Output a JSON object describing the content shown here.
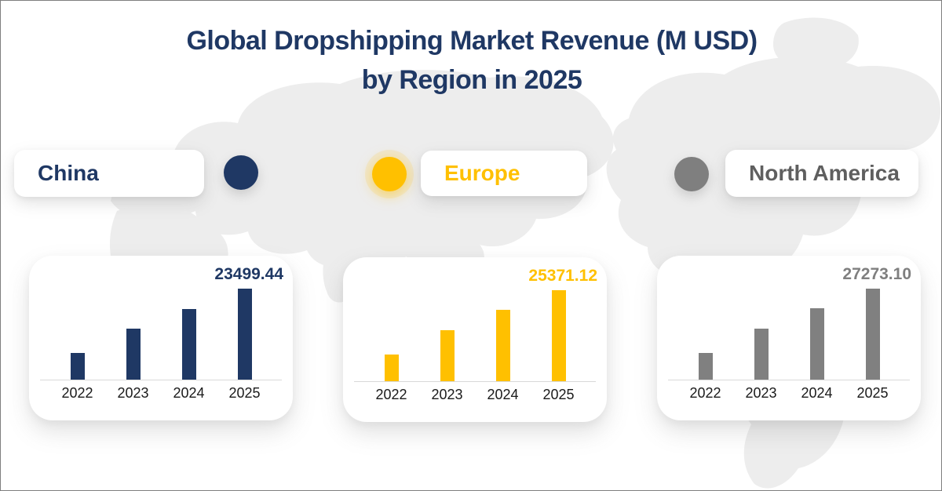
{
  "page": {
    "background": "#ffffff",
    "border_color": "#7f7f7f",
    "map_watermark_color": "#ededed"
  },
  "title": {
    "line1": "Global Dropshipping Market Revenue (M USD)",
    "line2": "by Region in 2025",
    "color": "#1F3864"
  },
  "legend": [
    {
      "label": "China",
      "marker_color": "#1F3864",
      "text_color": "#1F3864"
    },
    {
      "label": "Europe",
      "marker_color": "#FFC000",
      "text_color": "#FFC000"
    },
    {
      "label": "North America",
      "marker_color": "#7F7F7F",
      "text_color": "#5F5F5F"
    }
  ],
  "chart_data": [
    {
      "type": "bar",
      "region": "China",
      "categories": [
        "2022",
        "2023",
        "2024",
        "2025"
      ],
      "values": [
        6800,
        13160,
        18330,
        23499.44
      ],
      "value_label": "23499.44",
      "bar_color": "#1F3864",
      "value_label_color": "#1F3864",
      "ylim": [
        0,
        23499.44
      ],
      "grid": false,
      "note": "only the 2025 bar carries a data label; 2022-2024 values estimated from bar heights"
    },
    {
      "type": "bar",
      "region": "Europe",
      "categories": [
        "2022",
        "2023",
        "2024",
        "2025"
      ],
      "values": [
        7400,
        14200,
        19800,
        25371.12
      ],
      "value_label": "25371.12",
      "bar_color": "#FFC000",
      "value_label_color": "#FFC000",
      "ylim": [
        0,
        25371.12
      ],
      "grid": false,
      "note": "only the 2025 bar carries a data label; 2022-2024 values estimated from bar heights"
    },
    {
      "type": "bar",
      "region": "North America",
      "categories": [
        "2022",
        "2023",
        "2024",
        "2025"
      ],
      "values": [
        7900,
        15300,
        21300,
        27273.1
      ],
      "value_label": "27273.10",
      "bar_color": "#808080",
      "value_label_color": "#7F7F7F",
      "ylim": [
        0,
        27273.1
      ],
      "grid": false,
      "note": "only the 2025 bar carries a data label; 2022-2024 values estimated from bar heights"
    }
  ]
}
